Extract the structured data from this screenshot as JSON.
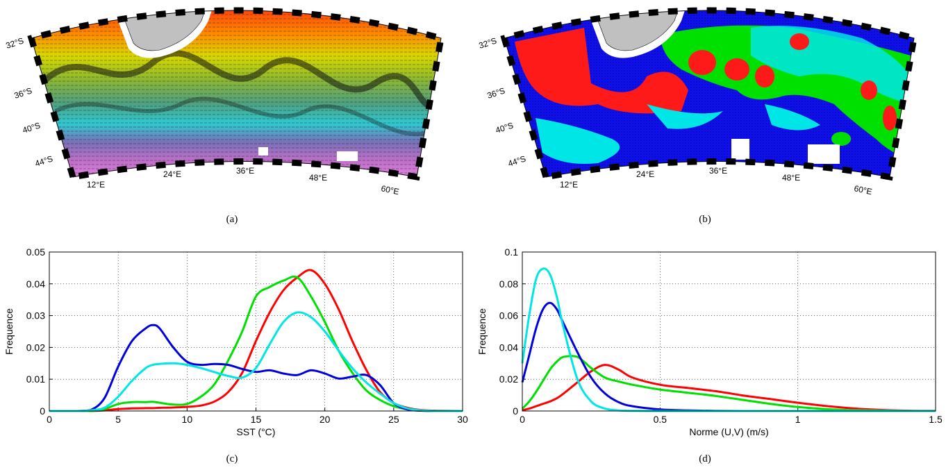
{
  "maps": {
    "a": {
      "lat_labels": [
        "32°S",
        "36°S",
        "40°S",
        "44°S"
      ],
      "lon_labels": [
        "12°E",
        "24°E",
        "36°E",
        "48°E",
        "60°E"
      ],
      "caption": "(a)"
    },
    "b": {
      "lat_labels": [
        "32°S",
        "36°S",
        "40°S",
        "44°S"
      ],
      "lon_labels": [
        "12°E",
        "24°E",
        "36°E",
        "48°E",
        "60°E"
      ],
      "caption": "(b)"
    }
  },
  "colors": {
    "red": "#ff0000",
    "green": "#00e000",
    "blue": "#0000dd",
    "cyan": "#00e6e6",
    "land": "#c0c0c0"
  },
  "chart_data": [
    {
      "id": "c",
      "type": "line",
      "caption": "(c)",
      "xlabel": "SST (°C)",
      "ylabel": "Frequence",
      "xlim": [
        0,
        30
      ],
      "ylim": [
        0,
        0.05
      ],
      "xticks": [
        "0",
        "5",
        "10",
        "15",
        "20",
        "25",
        "30"
      ],
      "yticks": [
        "0",
        "0.01",
        "0.02",
        "0.03",
        "0.04",
        "0.05"
      ],
      "grid": true,
      "x": [
        0,
        2,
        3,
        4,
        5,
        6,
        7,
        7.5,
        8,
        9,
        10,
        11,
        12,
        13,
        14,
        15,
        16,
        17,
        18,
        19,
        20,
        21,
        22,
        23,
        24,
        25,
        26,
        27,
        28,
        30
      ],
      "series": [
        {
          "color": "red",
          "values": [
            0,
            0,
            0,
            0.0002,
            0.0006,
            0.0008,
            0.0009,
            0.0009,
            0.001,
            0.0011,
            0.0013,
            0.0017,
            0.003,
            0.006,
            0.012,
            0.022,
            0.031,
            0.038,
            0.042,
            0.0443,
            0.04,
            0.032,
            0.022,
            0.013,
            0.006,
            0.0025,
            0.001,
            0.0003,
            0.0001,
            0
          ]
        },
        {
          "color": "green",
          "values": [
            0,
            0,
            0,
            0.0006,
            0.0022,
            0.0028,
            0.0028,
            0.0029,
            0.0026,
            0.002,
            0.0022,
            0.0045,
            0.0085,
            0.016,
            0.025,
            0.036,
            0.039,
            0.041,
            0.042,
            0.036,
            0.028,
            0.019,
            0.012,
            0.0065,
            0.0035,
            0.0015,
            0.0005,
            0.0001,
            0,
            0
          ]
        },
        {
          "color": "blue",
          "values": [
            0,
            0,
            0.0003,
            0.004,
            0.014,
            0.022,
            0.026,
            0.027,
            0.026,
            0.02,
            0.0155,
            0.0145,
            0.0148,
            0.0145,
            0.0132,
            0.0123,
            0.0128,
            0.0118,
            0.0113,
            0.0128,
            0.0118,
            0.0102,
            0.0108,
            0.0113,
            0.0082,
            0.0025,
            0.0005,
            0.0001,
            0,
            0
          ]
        },
        {
          "color": "cyan",
          "values": [
            0,
            0,
            0.0002,
            0.001,
            0.0045,
            0.0095,
            0.0135,
            0.0145,
            0.0148,
            0.015,
            0.0145,
            0.0135,
            0.0122,
            0.011,
            0.0105,
            0.0135,
            0.021,
            0.028,
            0.031,
            0.0295,
            0.025,
            0.019,
            0.0135,
            0.009,
            0.0055,
            0.0025,
            0.0008,
            0.0002,
            0,
            0
          ]
        }
      ]
    },
    {
      "id": "d",
      "type": "line",
      "caption": "(d)",
      "xlabel": "Norme (U,V) (m/s)",
      "ylabel": "Frequence",
      "xlim": [
        0,
        1.5
      ],
      "ylim": [
        0,
        0.1
      ],
      "xticks": [
        "0",
        "0.5",
        "1",
        "1.5"
      ],
      "yticks": [
        "0",
        "0.02",
        "0.04",
        "0.06",
        "0.08",
        "0.1"
      ],
      "grid": true,
      "x": [
        0,
        0.025,
        0.05,
        0.075,
        0.1,
        0.125,
        0.15,
        0.2,
        0.25,
        0.3,
        0.35,
        0.4,
        0.5,
        0.6,
        0.7,
        0.8,
        0.9,
        1.0,
        1.1,
        1.2,
        1.3,
        1.4,
        1.5
      ],
      "series": [
        {
          "color": "red",
          "values": [
            0.0005,
            0.0015,
            0.003,
            0.0045,
            0.006,
            0.008,
            0.011,
            0.018,
            0.025,
            0.029,
            0.026,
            0.021,
            0.0165,
            0.0145,
            0.0125,
            0.0098,
            0.0075,
            0.0052,
            0.0032,
            0.0016,
            0.0007,
            0.0002,
            0.0001
          ]
        },
        {
          "color": "green",
          "values": [
            0.0015,
            0.006,
            0.012,
            0.019,
            0.026,
            0.031,
            0.034,
            0.034,
            0.027,
            0.021,
            0.0185,
            0.0165,
            0.0135,
            0.0115,
            0.0095,
            0.007,
            0.0045,
            0.0025,
            0.0012,
            0.0005,
            0.0002,
            0,
            0
          ]
        },
        {
          "color": "blue",
          "values": [
            0.018,
            0.035,
            0.052,
            0.064,
            0.068,
            0.064,
            0.055,
            0.037,
            0.021,
            0.011,
            0.0055,
            0.003,
            0.001,
            0.0004,
            0.0001,
            0,
            0,
            0,
            0,
            0,
            0,
            0,
            0
          ]
        },
        {
          "color": "cyan",
          "values": [
            0.03,
            0.06,
            0.083,
            0.0895,
            0.086,
            0.072,
            0.052,
            0.02,
            0.006,
            0.0015,
            0.0004,
            0.0001,
            0,
            0,
            0,
            0,
            0,
            0,
            0,
            0,
            0,
            0,
            0
          ]
        }
      ]
    }
  ]
}
